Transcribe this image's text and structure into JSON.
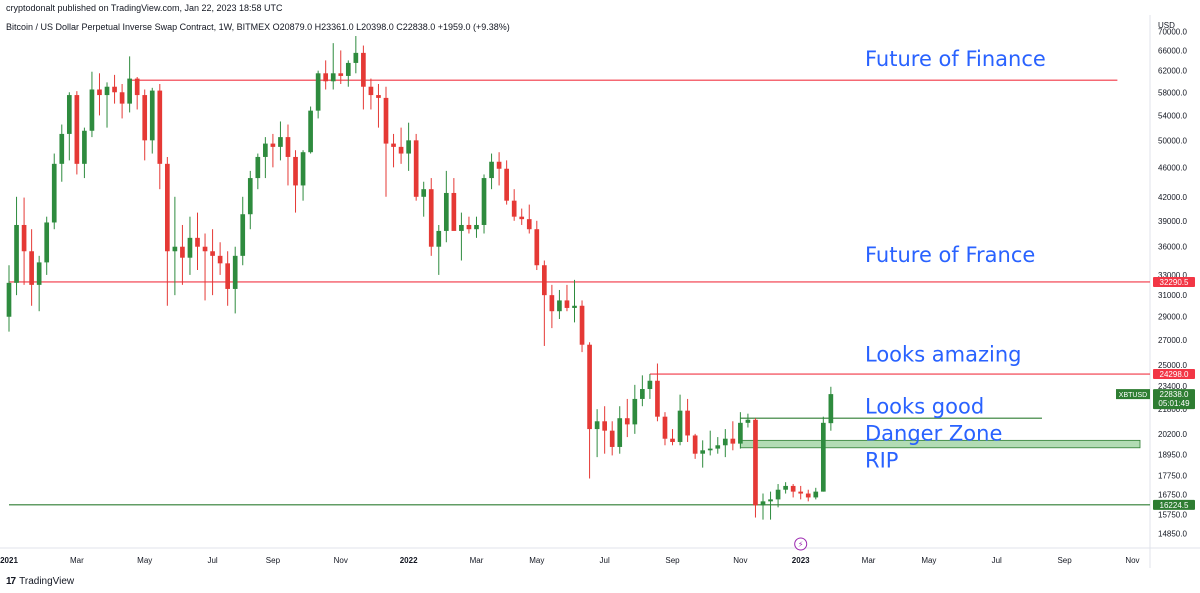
{
  "header": {
    "published": "cryptodonalt published on TradingView.com, Jan 22, 2023 18:58 UTC",
    "symbol_line": "Bitcoin / US Dollar Perpetual Inverse Swap Contract, 1W, BITMEX  O20879.0  H23361.0  L20398.0  C22838.0  +1959.0 (+9.38%)"
  },
  "footer": {
    "brand": "TradingView",
    "logo": "17"
  },
  "colors": {
    "up": "#26a69a",
    "up_body": "#2e8b3e",
    "down": "#e53935",
    "red_line": "#f23645",
    "green_line": "#2e7d32",
    "text_blue": "#2962ff",
    "zone_fill": "#a5d6a7"
  },
  "chart_data": {
    "type": "candlestick",
    "title": "",
    "currency_label": "USD",
    "x_tick_labels": [
      {
        "label": "2021",
        "bold": true,
        "t": 0
      },
      {
        "label": "Mar",
        "t": 9
      },
      {
        "label": "May",
        "t": 18
      },
      {
        "label": "Jul",
        "t": 27
      },
      {
        "label": "Sep",
        "t": 35
      },
      {
        "label": "Nov",
        "t": 44
      },
      {
        "label": "2022",
        "bold": true,
        "t": 53
      },
      {
        "label": "Mar",
        "t": 62
      },
      {
        "label": "May",
        "t": 70
      },
      {
        "label": "Jul",
        "t": 79
      },
      {
        "label": "Sep",
        "t": 88
      },
      {
        "label": "Nov",
        "t": 97
      },
      {
        "label": "2023",
        "bold": true,
        "t": 105
      },
      {
        "label": "Mar",
        "t": 114
      },
      {
        "label": "May",
        "t": 122
      },
      {
        "label": "Jul",
        "t": 131
      },
      {
        "label": "Sep",
        "t": 140
      },
      {
        "label": "Nov",
        "t": 149
      }
    ],
    "y_ticks": [
      70000,
      66000,
      62000,
      58000,
      54000,
      50000,
      46000,
      42000,
      39000,
      36000,
      33000,
      31000,
      29000,
      27000,
      25000,
      23400,
      21800,
      20200,
      18950,
      17750,
      16750,
      15750,
      14850
    ],
    "y_tick_labels": [
      "70000.0",
      "66000.0",
      "62000.0",
      "58000.0",
      "54000.0",
      "50000.0",
      "46000.0",
      "42000.0",
      "39000.0",
      "36000.0",
      "33000.0",
      "31000.0",
      "29000.0",
      "27000.0",
      "25000.0",
      "23400.0",
      "21800.0",
      "20200.0",
      "18950.0",
      "17750.0",
      "16750.0",
      "15750.0",
      "14850.0"
    ],
    "y_scale": "log",
    "ylim": [
      14200,
      72500
    ],
    "x_range": [
      0,
      150
    ],
    "candles": [
      {
        "t": 0,
        "o": 29000,
        "h": 34000,
        "l": 27700,
        "c": 32200
      },
      {
        "t": 1,
        "o": 32200,
        "h": 42000,
        "l": 31000,
        "c": 38500
      },
      {
        "t": 2,
        "o": 38500,
        "h": 41900,
        "l": 32000,
        "c": 35500
      },
      {
        "t": 3,
        "o": 35500,
        "h": 38000,
        "l": 30000,
        "c": 32000
      },
      {
        "t": 4,
        "o": 32000,
        "h": 35000,
        "l": 29500,
        "c": 34300
      },
      {
        "t": 5,
        "o": 34300,
        "h": 39500,
        "l": 33000,
        "c": 38800
      },
      {
        "t": 6,
        "o": 38800,
        "h": 48000,
        "l": 38000,
        "c": 46500
      },
      {
        "t": 7,
        "o": 46500,
        "h": 52500,
        "l": 44000,
        "c": 51000
      },
      {
        "t": 8,
        "o": 51000,
        "h": 58000,
        "l": 47000,
        "c": 57500
      },
      {
        "t": 9,
        "o": 57500,
        "h": 58200,
        "l": 45000,
        "c": 46500
      },
      {
        "t": 10,
        "o": 46500,
        "h": 52000,
        "l": 44500,
        "c": 51500
      },
      {
        "t": 11,
        "o": 51500,
        "h": 61800,
        "l": 50500,
        "c": 58500
      },
      {
        "t": 12,
        "o": 58500,
        "h": 61500,
        "l": 54000,
        "c": 57500
      },
      {
        "t": 13,
        "o": 57500,
        "h": 59800,
        "l": 52000,
        "c": 59000
      },
      {
        "t": 14,
        "o": 59000,
        "h": 61200,
        "l": 56000,
        "c": 58000
      },
      {
        "t": 15,
        "o": 58000,
        "h": 59500,
        "l": 53500,
        "c": 56000
      },
      {
        "t": 16,
        "o": 56000,
        "h": 64800,
        "l": 54500,
        "c": 60500
      },
      {
        "t": 17,
        "o": 60500,
        "h": 60800,
        "l": 55000,
        "c": 57500
      },
      {
        "t": 18,
        "o": 57500,
        "h": 58500,
        "l": 47000,
        "c": 50000
      },
      {
        "t": 19,
        "o": 50000,
        "h": 58800,
        "l": 48000,
        "c": 58300
      },
      {
        "t": 20,
        "o": 58300,
        "h": 59500,
        "l": 43000,
        "c": 46500
      },
      {
        "t": 21,
        "o": 46500,
        "h": 47500,
        "l": 30000,
        "c": 35500
      },
      {
        "t": 22,
        "o": 35500,
        "h": 42000,
        "l": 31000,
        "c": 36000
      },
      {
        "t": 23,
        "o": 36000,
        "h": 38500,
        "l": 32000,
        "c": 34800
      },
      {
        "t": 24,
        "o": 34800,
        "h": 39500,
        "l": 33000,
        "c": 37000
      },
      {
        "t": 25,
        "o": 37000,
        "h": 40000,
        "l": 33500,
        "c": 36000
      },
      {
        "t": 26,
        "o": 36000,
        "h": 37500,
        "l": 30500,
        "c": 35500
      },
      {
        "t": 27,
        "o": 35500,
        "h": 38000,
        "l": 31000,
        "c": 35000
      },
      {
        "t": 28,
        "o": 35000,
        "h": 36500,
        "l": 33000,
        "c": 34200
      },
      {
        "t": 29,
        "o": 34200,
        "h": 35500,
        "l": 30000,
        "c": 31600
      },
      {
        "t": 30,
        "o": 31600,
        "h": 36000,
        "l": 29300,
        "c": 35000
      },
      {
        "t": 31,
        "o": 35000,
        "h": 42000,
        "l": 34000,
        "c": 39800
      },
      {
        "t": 32,
        "o": 39800,
        "h": 45500,
        "l": 38000,
        "c": 44500
      },
      {
        "t": 33,
        "o": 44500,
        "h": 48000,
        "l": 43000,
        "c": 47500
      },
      {
        "t": 34,
        "o": 47500,
        "h": 50500,
        "l": 44500,
        "c": 49500
      },
      {
        "t": 35,
        "o": 49500,
        "h": 51000,
        "l": 46000,
        "c": 49000
      },
      {
        "t": 36,
        "o": 49000,
        "h": 53000,
        "l": 47000,
        "c": 50500
      },
      {
        "t": 37,
        "o": 50500,
        "h": 52500,
        "l": 43500,
        "c": 47500
      },
      {
        "t": 38,
        "o": 47500,
        "h": 48500,
        "l": 40000,
        "c": 43500
      },
      {
        "t": 39,
        "o": 43500,
        "h": 48500,
        "l": 41500,
        "c": 48200
      },
      {
        "t": 40,
        "o": 48200,
        "h": 55500,
        "l": 48000,
        "c": 54800
      },
      {
        "t": 41,
        "o": 54800,
        "h": 62000,
        "l": 53500,
        "c": 61500
      },
      {
        "t": 42,
        "o": 61500,
        "h": 64000,
        "l": 58500,
        "c": 60000
      },
      {
        "t": 43,
        "o": 60000,
        "h": 67500,
        "l": 58500,
        "c": 61500
      },
      {
        "t": 44,
        "o": 61500,
        "h": 66000,
        "l": 59500,
        "c": 61000
      },
      {
        "t": 45,
        "o": 61000,
        "h": 64000,
        "l": 59000,
        "c": 63500
      },
      {
        "t": 46,
        "o": 63500,
        "h": 69000,
        "l": 61500,
        "c": 65500
      },
      {
        "t": 47,
        "o": 65500,
        "h": 67000,
        "l": 55000,
        "c": 59000
      },
      {
        "t": 48,
        "o": 59000,
        "h": 60500,
        "l": 55000,
        "c": 57500
      },
      {
        "t": 49,
        "o": 57500,
        "h": 59500,
        "l": 52000,
        "c": 57000
      },
      {
        "t": 50,
        "o": 57000,
        "h": 59000,
        "l": 42000,
        "c": 49500
      },
      {
        "t": 51,
        "o": 49500,
        "h": 51000,
        "l": 46000,
        "c": 49000
      },
      {
        "t": 52,
        "o": 49000,
        "h": 52000,
        "l": 46500,
        "c": 48000
      },
      {
        "t": 53,
        "o": 48000,
        "h": 52800,
        "l": 45500,
        "c": 50000
      },
      {
        "t": 54,
        "o": 50000,
        "h": 51000,
        "l": 41500,
        "c": 42000
      },
      {
        "t": 55,
        "o": 42000,
        "h": 44000,
        "l": 39500,
        "c": 43000
      },
      {
        "t": 56,
        "o": 43000,
        "h": 44500,
        "l": 35000,
        "c": 36000
      },
      {
        "t": 57,
        "o": 36000,
        "h": 38500,
        "l": 33000,
        "c": 37800
      },
      {
        "t": 58,
        "o": 37800,
        "h": 45500,
        "l": 36500,
        "c": 42500
      },
      {
        "t": 59,
        "o": 42500,
        "h": 44500,
        "l": 38000,
        "c": 37800
      },
      {
        "t": 60,
        "o": 37800,
        "h": 40000,
        "l": 34500,
        "c": 38500
      },
      {
        "t": 61,
        "o": 38500,
        "h": 39500,
        "l": 37500,
        "c": 38000
      },
      {
        "t": 62,
        "o": 38000,
        "h": 39500,
        "l": 37000,
        "c": 38500
      },
      {
        "t": 63,
        "o": 38500,
        "h": 45000,
        "l": 37500,
        "c": 44500
      },
      {
        "t": 64,
        "o": 44500,
        "h": 48000,
        "l": 43000,
        "c": 46800
      },
      {
        "t": 65,
        "o": 46800,
        "h": 48200,
        "l": 43500,
        "c": 45800
      },
      {
        "t": 66,
        "o": 45800,
        "h": 47000,
        "l": 41000,
        "c": 41500
      },
      {
        "t": 67,
        "o": 41500,
        "h": 43000,
        "l": 39000,
        "c": 39500
      },
      {
        "t": 68,
        "o": 39500,
        "h": 40500,
        "l": 38500,
        "c": 39200
      },
      {
        "t": 69,
        "o": 39200,
        "h": 41000,
        "l": 37500,
        "c": 38000
      },
      {
        "t": 70,
        "o": 38000,
        "h": 39000,
        "l": 33500,
        "c": 34000
      },
      {
        "t": 71,
        "o": 34000,
        "h": 34500,
        "l": 26500,
        "c": 31000
      },
      {
        "t": 72,
        "o": 31000,
        "h": 32000,
        "l": 28000,
        "c": 29500
      },
      {
        "t": 73,
        "o": 29500,
        "h": 31500,
        "l": 28800,
        "c": 30500
      },
      {
        "t": 74,
        "o": 30500,
        "h": 32000,
        "l": 29500,
        "c": 29800
      },
      {
        "t": 75,
        "o": 29800,
        "h": 32500,
        "l": 28500,
        "c": 30000
      },
      {
        "t": 76,
        "o": 30000,
        "h": 30500,
        "l": 26000,
        "c": 26600
      },
      {
        "t": 77,
        "o": 26600,
        "h": 26800,
        "l": 17600,
        "c": 20500
      },
      {
        "t": 78,
        "o": 20500,
        "h": 21800,
        "l": 18800,
        "c": 21000
      },
      {
        "t": 79,
        "o": 21000,
        "h": 22000,
        "l": 19000,
        "c": 20400
      },
      {
        "t": 80,
        "o": 20400,
        "h": 21000,
        "l": 18900,
        "c": 19400
      },
      {
        "t": 81,
        "o": 19400,
        "h": 22000,
        "l": 19000,
        "c": 21200
      },
      {
        "t": 82,
        "o": 21200,
        "h": 22500,
        "l": 20000,
        "c": 20800
      },
      {
        "t": 83,
        "o": 20800,
        "h": 23500,
        "l": 20200,
        "c": 22500
      },
      {
        "t": 84,
        "o": 22500,
        "h": 24200,
        "l": 22000,
        "c": 23200
      },
      {
        "t": 85,
        "o": 23200,
        "h": 24300,
        "l": 22500,
        "c": 23800
      },
      {
        "t": 86,
        "o": 23800,
        "h": 25100,
        "l": 21000,
        "c": 21300
      },
      {
        "t": 87,
        "o": 21300,
        "h": 21600,
        "l": 19500,
        "c": 19900
      },
      {
        "t": 88,
        "o": 19900,
        "h": 20500,
        "l": 19500,
        "c": 19700
      },
      {
        "t": 89,
        "o": 19700,
        "h": 22800,
        "l": 19500,
        "c": 21700
      },
      {
        "t": 90,
        "o": 21700,
        "h": 22500,
        "l": 19700,
        "c": 20100
      },
      {
        "t": 91,
        "o": 20100,
        "h": 20200,
        "l": 18700,
        "c": 19000
      },
      {
        "t": 92,
        "o": 19000,
        "h": 19800,
        "l": 18200,
        "c": 19200
      },
      {
        "t": 93,
        "o": 19200,
        "h": 20400,
        "l": 18900,
        "c": 19300
      },
      {
        "t": 94,
        "o": 19300,
        "h": 20000,
        "l": 19000,
        "c": 19500
      },
      {
        "t": 95,
        "o": 19500,
        "h": 20500,
        "l": 18800,
        "c": 19900
      },
      {
        "t": 96,
        "o": 19900,
        "h": 21000,
        "l": 19200,
        "c": 19600
      },
      {
        "t": 97,
        "o": 19600,
        "h": 21600,
        "l": 19300,
        "c": 20900
      },
      {
        "t": 98,
        "o": 20900,
        "h": 21500,
        "l": 20600,
        "c": 21100
      },
      {
        "t": 99,
        "o": 21100,
        "h": 21200,
        "l": 15600,
        "c": 16200
      },
      {
        "t": 100,
        "o": 16200,
        "h": 16800,
        "l": 15500,
        "c": 16400
      },
      {
        "t": 101,
        "o": 16400,
        "h": 16900,
        "l": 15500,
        "c": 16500
      },
      {
        "t": 102,
        "o": 16500,
        "h": 17300,
        "l": 16100,
        "c": 17000
      },
      {
        "t": 103,
        "o": 17000,
        "h": 17400,
        "l": 16800,
        "c": 17200
      },
      {
        "t": 104,
        "o": 17200,
        "h": 17300,
        "l": 16600,
        "c": 16900
      },
      {
        "t": 105,
        "o": 16900,
        "h": 17200,
        "l": 16500,
        "c": 16800
      },
      {
        "t": 106,
        "o": 16800,
        "h": 17000,
        "l": 16400,
        "c": 16600
      },
      {
        "t": 107,
        "o": 16600,
        "h": 17100,
        "l": 16500,
        "c": 16900
      },
      {
        "t": 108,
        "o": 16900,
        "h": 21300,
        "l": 16900,
        "c": 20900
      },
      {
        "t": 109,
        "o": 20879,
        "h": 23361,
        "l": 20398,
        "c": 22838
      }
    ],
    "horizontal_lines": [
      {
        "name": "line-60000",
        "price": 60200,
        "color": "red",
        "t_start": 16,
        "t_end": 147
      },
      {
        "name": "line-32290",
        "price": 32290.5,
        "color": "red",
        "t_start": 0,
        "t_end": 160
      },
      {
        "name": "line-24298",
        "price": 24298,
        "color": "red",
        "t_start": 85,
        "t_end": 160
      },
      {
        "name": "line-21200",
        "price": 21200,
        "color": "green",
        "t_start": 97,
        "t_end": 137
      },
      {
        "name": "line-16224",
        "price": 16224.5,
        "color": "green",
        "t_start": 0,
        "t_end": 160
      }
    ],
    "zone": {
      "name": "danger-zone-box",
      "price_low": 19350,
      "price_high": 19800,
      "t_start": 97,
      "t_end": 150
    },
    "price_labels": [
      {
        "name": "label-32290",
        "value": "32290.5",
        "price": 32290.5,
        "color": "red"
      },
      {
        "name": "label-24298",
        "value": "24298.0",
        "price": 24298,
        "color": "red"
      },
      {
        "name": "label-current",
        "value": "22838.0",
        "sub": "05:01:49",
        "price": 22838,
        "color": "green",
        "ticker": "XBTUSD"
      },
      {
        "name": "label-16224",
        "value": "16224.5",
        "price": 16224.5,
        "color": "green"
      }
    ],
    "annotations": [
      {
        "name": "annotation-future-of-finance",
        "text": "Future of Finance",
        "price": 64500
      },
      {
        "name": "annotation-future-of-france",
        "text": "Future of France",
        "price": 35200
      },
      {
        "name": "annotation-looks-amazing",
        "text": "Looks amazing",
        "price": 25900
      },
      {
        "name": "annotation-looks-good",
        "text": "Looks good",
        "price": 22050
      },
      {
        "name": "annotation-danger-zone",
        "text": "Danger Zone",
        "price": 20300
      },
      {
        "name": "annotation-rip",
        "text": "RIP",
        "price": 18650
      }
    ],
    "marker": {
      "t": 105,
      "label": "⚡"
    }
  }
}
